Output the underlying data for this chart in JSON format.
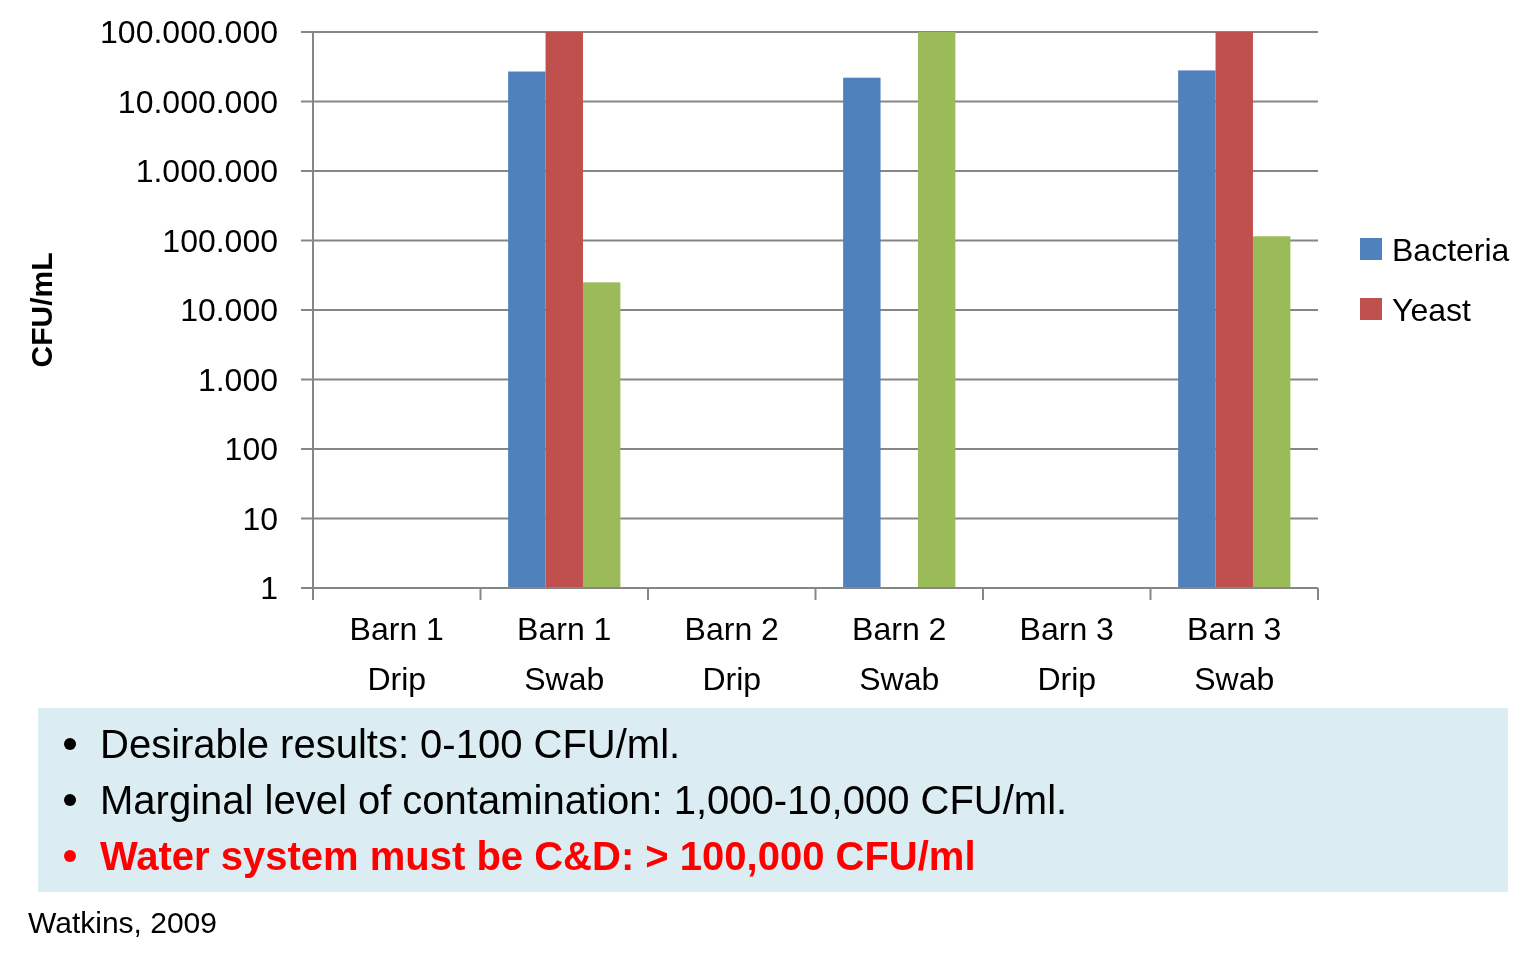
{
  "chart_data": {
    "type": "bar",
    "ylabel": "CFU/mL",
    "categories": [
      "Barn 1\nDrip",
      "Barn 1\nSwab",
      "Barn 2\nDrip",
      "Barn 2\nSwab",
      "Barn 3\nDrip",
      "Barn 3\nSwab"
    ],
    "series": [
      {
        "name": "Bacteria",
        "color": "#4f81bd",
        "values": [
          null,
          27000000,
          null,
          22000000,
          null,
          28000000
        ]
      },
      {
        "name": "Yeast",
        "color": "#c0504d",
        "values": [
          null,
          100000000,
          null,
          null,
          null,
          100000000
        ]
      },
      {
        "color": "#9bbb59",
        "values": [
          null,
          25000,
          null,
          100000000,
          null,
          115000
        ]
      }
    ],
    "log": true,
    "ylim": [
      1,
      100000000
    ],
    "yticks": [
      1,
      10,
      100,
      {
        "value": 1000,
        "label": "1.000"
      },
      {
        "value": 10000,
        "label": "10.000"
      },
      {
        "value": 100000,
        "label": "100.000"
      },
      {
        "value": 1000000,
        "label": "1.000.000"
      },
      {
        "value": 10000000,
        "label": "10.000.000"
      },
      {
        "value": 100000000,
        "label": "100.000.000"
      }
    ],
    "grid": "y",
    "legend": "right",
    "annotations": [
      "Desirable results: 0-100 CFU/ml.",
      "Marginal level of contamination: 1,000-10,000 CFU/ml.",
      "Water system must be C&D: > 100,000 CFU/ml",
      "Watkins, 2009"
    ]
  }
}
